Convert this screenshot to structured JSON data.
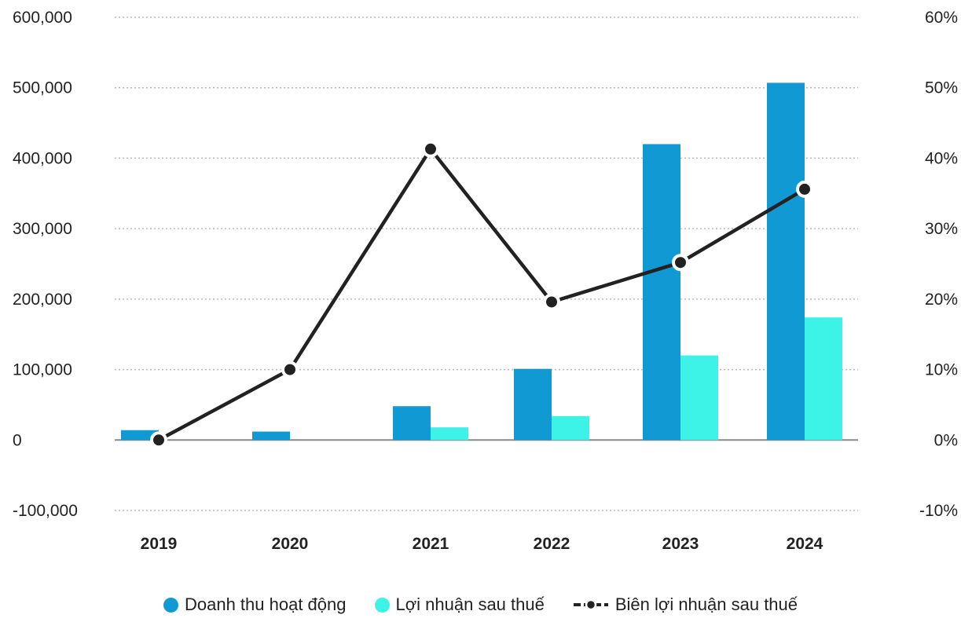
{
  "chart_data": {
    "type": "bar",
    "categories": [
      "2019",
      "2020",
      "2021",
      "2022",
      "2023",
      "2024"
    ],
    "series": [
      {
        "name": "Doanh thu hoạt động",
        "type": "bar",
        "axis": "left",
        "color": "#1199D4",
        "values": [
          14000,
          12000,
          48000,
          101000,
          420000,
          507000
        ]
      },
      {
        "name": "Lợi nhuận sau thuế",
        "type": "bar",
        "axis": "left",
        "color": "#3DF2E6",
        "values": [
          0,
          0,
          18000,
          34000,
          120000,
          174000
        ]
      },
      {
        "name": "Biên lợi nhuận sau thuế",
        "type": "line",
        "axis": "right",
        "color": "#222222",
        "values": [
          0,
          10,
          41.3,
          19.6,
          25.2,
          35.6
        ]
      }
    ],
    "y_left": {
      "ylim": [
        -100000,
        600000
      ],
      "ticks": [
        -100000,
        0,
        100000,
        200000,
        300000,
        400000,
        500000,
        600000
      ],
      "tick_labels": [
        "-100,000",
        "0",
        "100,000",
        "200,000",
        "300,000",
        "400,000",
        "500,000",
        "600,000"
      ]
    },
    "y_right": {
      "ylim": [
        -10,
        60
      ],
      "ticks": [
        -10,
        0,
        10,
        20,
        30,
        40,
        50,
        60
      ],
      "tick_labels": [
        "-10%",
        "0%",
        "10%",
        "20%",
        "30%",
        "40%",
        "50%",
        "60%"
      ]
    },
    "grid": true,
    "legend_position": "bottom-center"
  }
}
